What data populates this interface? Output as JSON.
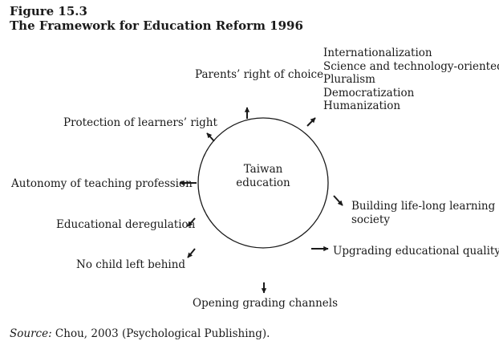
{
  "figure": {
    "label": "Figure 15.3",
    "title": "The Framework for Education Reform 1996"
  },
  "center": {
    "line1": "Taiwan",
    "line2": "education"
  },
  "nodes": {
    "parents_choice": "Parents’ right of choice",
    "values": [
      "Internationalization",
      "Science and technology-oriented",
      "Pluralism",
      "Democratization",
      "Humanization"
    ],
    "learners_right": "Protection of learners’ right",
    "autonomy": "Autonomy of teaching profession",
    "deregulation": "Educational deregulation",
    "no_child": "No child left behind",
    "opening_channels": "Opening grading channels",
    "upgrading_quality": "Upgrading educational quality",
    "lifelong_line1": "Building life-long learning",
    "lifelong_line2": "society"
  },
  "source": {
    "label": "Source:",
    "text": "Chou, 2003 (Psychological Publishing)."
  },
  "colors": {
    "ink": "#1a1a1a",
    "background": "#ffffff"
  }
}
